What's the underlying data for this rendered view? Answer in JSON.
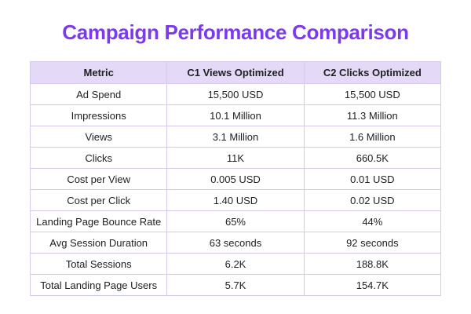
{
  "title": "Campaign Performance Comparison",
  "chart_data": {
    "type": "table",
    "title": "Campaign Performance Comparison",
    "columns": [
      "Metric",
      "C1 Views Optimized",
      "C2 Clicks Optimized"
    ],
    "rows": [
      [
        "Ad Spend",
        "15,500 USD",
        "15,500 USD"
      ],
      [
        "Impressions",
        "10.1 Million",
        "11.3 Million"
      ],
      [
        "Views",
        "3.1 Million",
        "1.6 Million"
      ],
      [
        "Clicks",
        "11K",
        "660.5K"
      ],
      [
        "Cost per View",
        "0.005 USD",
        "0.01 USD"
      ],
      [
        "Cost per Click",
        "1.40 USD",
        "0.02 USD"
      ],
      [
        "Landing Page Bounce Rate",
        "65%",
        "44%"
      ],
      [
        "Avg Session Duration",
        "63 seconds",
        "92 seconds"
      ],
      [
        "Total Sessions",
        "6.2K",
        "188.8K"
      ],
      [
        "Total Landing Page Users",
        "5.7K",
        "154.7K"
      ]
    ]
  },
  "colors": {
    "title": "#7C3AED",
    "header_background": "#E4D9F6",
    "border": "#D6C9EA",
    "text": "#202124",
    "page_background": "#FFFFFF"
  }
}
